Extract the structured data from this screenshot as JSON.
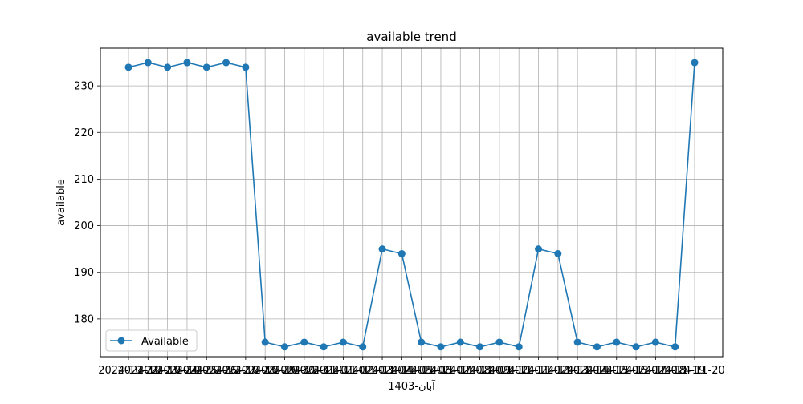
{
  "chart_data": {
    "type": "line",
    "title": "available trend",
    "xlabel": "1403-آبان",
    "ylabel": "available",
    "x": [
      "2024-10-22",
      "2024-10-23",
      "2024-10-24",
      "2024-10-25",
      "2024-10-26",
      "2024-10-27",
      "2024-10-28",
      "2024-10-29",
      "2024-10-30",
      "2024-10-31",
      "2024-11-01",
      "2024-11-02",
      "2024-11-03",
      "2024-11-04",
      "2024-11-05",
      "2024-11-06",
      "2024-11-07",
      "2024-11-08",
      "2024-11-09",
      "2024-11-10",
      "2024-11-11",
      "2024-11-12",
      "2024-11-13",
      "2024-11-14",
      "2024-11-15",
      "2024-11-16",
      "2024-11-17",
      "2024-11-18",
      "2024-11-19",
      "2024-11-20"
    ],
    "series": [
      {
        "name": "Available",
        "color": "#1f77b4",
        "values": [
          234,
          235,
          234,
          235,
          234,
          235,
          234,
          175,
          174,
          175,
          174,
          175,
          174,
          195,
          194,
          175,
          174,
          175,
          174,
          175,
          174,
          195,
          194,
          175,
          174,
          175,
          174,
          175,
          174,
          235
        ]
      }
    ],
    "ylim": [
      171.9,
      238.1
    ],
    "yticks": [
      180,
      190,
      200,
      210,
      220,
      230
    ],
    "grid": true,
    "legend": "lower-left"
  }
}
